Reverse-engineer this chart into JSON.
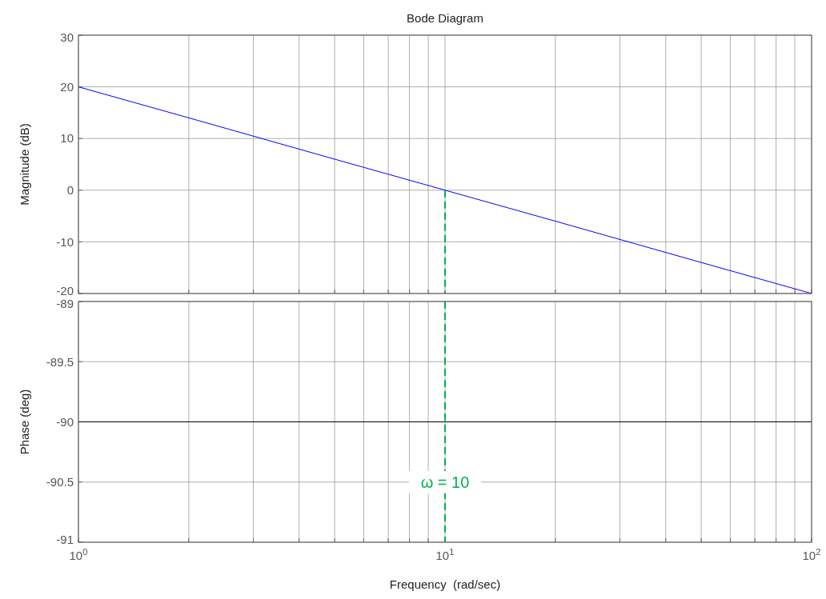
{
  "chart_data": [
    {
      "type": "line",
      "title": "Bode Diagram",
      "ylabel": "Magnitude (dB)",
      "log": "x",
      "grid": true,
      "tick_labels": "y",
      "xlim": [
        1,
        100
      ],
      "xticks": [
        {
          "value": 1,
          "label": null
        },
        {
          "value": 2,
          "label": null
        },
        {
          "value": 3,
          "label": null
        },
        {
          "value": 4,
          "label": null
        },
        {
          "value": 5,
          "label": null
        },
        {
          "value": 6,
          "label": null
        },
        {
          "value": 7,
          "label": null
        },
        {
          "value": 8,
          "label": null
        },
        {
          "value": 9,
          "label": null
        },
        {
          "value": 10,
          "label": null
        },
        {
          "value": 20,
          "label": null
        },
        {
          "value": 30,
          "label": null
        },
        {
          "value": 40,
          "label": null
        },
        {
          "value": 50,
          "label": null
        },
        {
          "value": 60,
          "label": null
        },
        {
          "value": 70,
          "label": null
        },
        {
          "value": 80,
          "label": null
        },
        {
          "value": 90,
          "label": null
        },
        {
          "value": 100,
          "label": null
        }
      ],
      "ylim": [
        -20,
        30
      ],
      "yticks": [
        -20,
        -10,
        0,
        10,
        20,
        30
      ],
      "series": [
        {
          "color": "#0000ff",
          "x": [
            1,
            2,
            5,
            10,
            20,
            50,
            100
          ],
          "values": [
            20,
            14,
            6,
            0,
            -6,
            -14,
            -20
          ]
        },
        {
          "color": "#00b050",
          "line_style": "dashed",
          "x": [
            10,
            10
          ],
          "values": [
            0,
            -20
          ]
        }
      ]
    },
    {
      "type": "line",
      "ylabel": "Phase (deg)",
      "xlabel": "Frequency  (rad/sec)",
      "log": "x",
      "grid": true,
      "xlim": [
        1,
        100
      ],
      "xticks": [
        {
          "value": 1,
          "label": "10$^{0}$"
        },
        {
          "value": 2,
          "label": null
        },
        {
          "value": 3,
          "label": null
        },
        {
          "value": 4,
          "label": null
        },
        {
          "value": 5,
          "label": null
        },
        {
          "value": 6,
          "label": null
        },
        {
          "value": 7,
          "label": null
        },
        {
          "value": 8,
          "label": null
        },
        {
          "value": 9,
          "label": null
        },
        {
          "value": 10,
          "label": "10$^{1}$"
        },
        {
          "value": 20,
          "label": null
        },
        {
          "value": 30,
          "label": null
        },
        {
          "value": 40,
          "label": null
        },
        {
          "value": 50,
          "label": null
        },
        {
          "value": 60,
          "label": null
        },
        {
          "value": 70,
          "label": null
        },
        {
          "value": 80,
          "label": null
        },
        {
          "value": 90,
          "label": null
        },
        {
          "value": 100,
          "label": "10$^{2}$"
        }
      ],
      "ylim": [
        -91,
        -89
      ],
      "yticks": [
        -91,
        -90.5,
        -90,
        -89.5,
        -89
      ],
      "series": [
        {
          "color": "#000000",
          "x": [
            1,
            100
          ],
          "values": [
            -90,
            -90
          ]
        }
      ],
      "ref_lines": [
        {
          "axis": "x",
          "value": 10,
          "color": "#00b050",
          "line_style": "dashed"
        }
      ],
      "annotations": [
        {
          "text": "ω = 10",
          "x": 10,
          "y": -90.5
        }
      ]
    }
  ]
}
